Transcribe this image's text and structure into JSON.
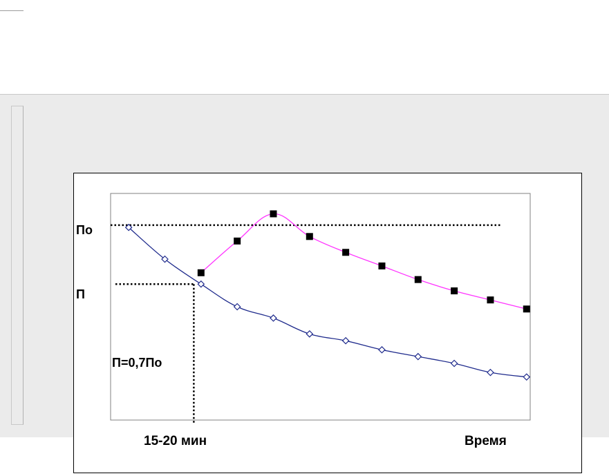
{
  "chart_data": {
    "type": "line",
    "title": "",
    "xlabel": "Время",
    "ylabel": "",
    "xlim": [
      0,
      11.6
    ],
    "ylim": [
      0,
      100
    ],
    "grid": false,
    "y_markers": [
      {
        "label": "По",
        "value": 86
      },
      {
        "label": "П",
        "value": 60
      }
    ],
    "x_markers": [
      {
        "label": "15-20 мин",
        "value": 2.3
      }
    ],
    "annotation": "П=0,7По",
    "series": [
      {
        "color": "#1e2a8c",
        "marker": "diamond-open",
        "x": [
          0.5,
          1.5,
          2.5,
          3.5,
          4.5,
          5.5,
          6.5,
          7.5,
          8.5,
          9.5,
          10.5,
          11.5
        ],
        "y": [
          85,
          71,
          60,
          50,
          45,
          38,
          35,
          31,
          28,
          25,
          21,
          19
        ]
      },
      {
        "color": "#ff33ff",
        "marker": "square-filled",
        "x": [
          2.5,
          3.5,
          4.5,
          5.5,
          6.5,
          7.5,
          8.5,
          9.5,
          10.5,
          11.5
        ],
        "y": [
          65,
          79,
          91,
          81,
          74,
          68,
          62,
          57,
          53,
          49
        ]
      }
    ]
  }
}
